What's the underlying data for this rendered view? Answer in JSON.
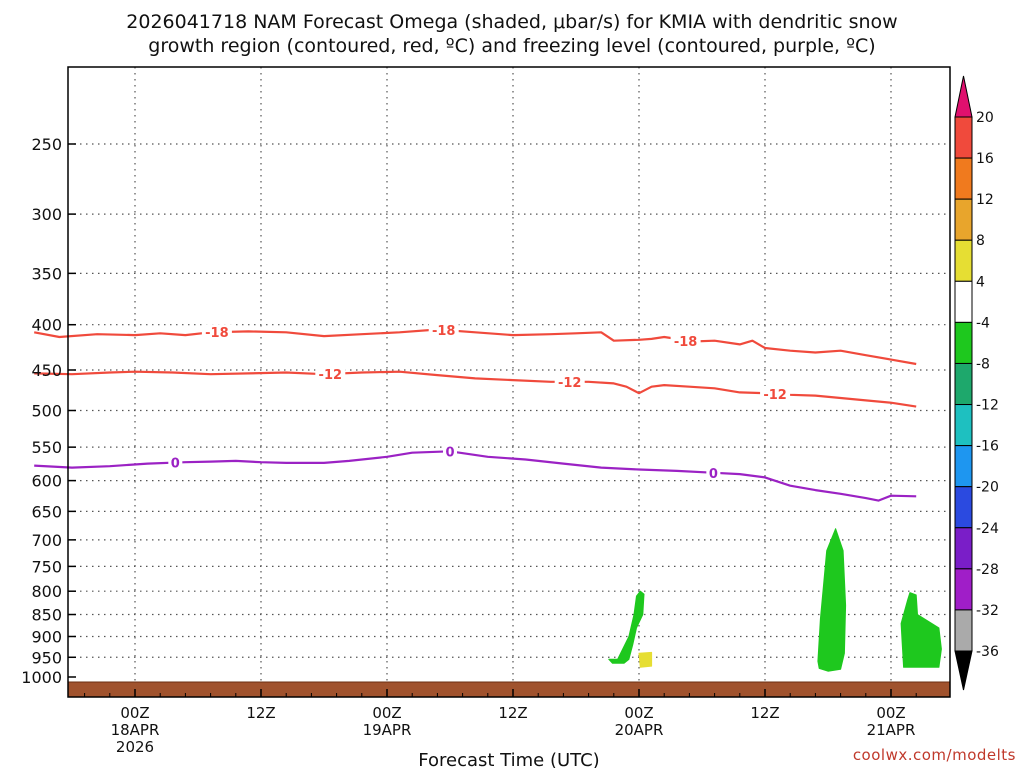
{
  "title": {
    "line1": "2026041718 NAM Forecast Omega (shaded, μbar/s) for KMIA with dendritic snow",
    "line2": "growth region (contoured, red, ºC) and freezing level (contoured, purple, ºC)"
  },
  "credit": "coolwx.com/modelts",
  "chart_data": {
    "type": "time-height",
    "xlabel": "Forecast Time (UTC)",
    "x_range_hours": [
      -8,
      62
    ],
    "x_ticks": [
      {
        "h": 0,
        "label": "00Z",
        "sub1": "18APR",
        "sub2": "2026"
      },
      {
        "h": 10,
        "label": "12Z",
        "sub1": "",
        "sub2": ""
      },
      {
        "h": 20,
        "label": "00Z",
        "sub1": "19APR",
        "sub2": ""
      },
      {
        "h": 30,
        "label": "12Z",
        "sub1": "",
        "sub2": ""
      },
      {
        "h": 40,
        "label": "00Z",
        "sub1": "20APR",
        "sub2": ""
      },
      {
        "h": 50,
        "label": "12Z",
        "sub1": "",
        "sub2": ""
      },
      {
        "h": 60,
        "label": "00Z",
        "sub1": "21APR",
        "sub2": ""
      }
    ],
    "y_scale": "log-pressure",
    "y_range_hpa": [
      200,
      1025
    ],
    "y_ticks": [
      250,
      300,
      350,
      400,
      450,
      500,
      550,
      600,
      650,
      700,
      750,
      800,
      850,
      900,
      950,
      1000
    ],
    "y_grid": [
      250,
      300,
      350,
      400,
      450,
      500,
      550,
      600,
      650,
      700,
      750,
      800,
      850,
      900,
      950
    ],
    "contours": [
      {
        "level": "-18",
        "color": "#f04a3c",
        "label_positions_h": [
          6.5,
          24.5,
          43.7
        ],
        "points": [
          [
            -8,
            408
          ],
          [
            -6,
            413
          ],
          [
            -3,
            410
          ],
          [
            0,
            411
          ],
          [
            2,
            409
          ],
          [
            4,
            411
          ],
          [
            6,
            408
          ],
          [
            9,
            407
          ],
          [
            12,
            408
          ],
          [
            15,
            412
          ],
          [
            18,
            410
          ],
          [
            21,
            408
          ],
          [
            24,
            405
          ],
          [
            27,
            408
          ],
          [
            30,
            411
          ],
          [
            33,
            410
          ],
          [
            35,
            409
          ],
          [
            37,
            408
          ],
          [
            38,
            417
          ],
          [
            40,
            416
          ],
          [
            41,
            415
          ],
          [
            42,
            413
          ],
          [
            43,
            415
          ],
          [
            44,
            418
          ],
          [
            46,
            417
          ],
          [
            48,
            421
          ],
          [
            49,
            417
          ],
          [
            50,
            425
          ],
          [
            52,
            428
          ],
          [
            54,
            430
          ],
          [
            56,
            428
          ],
          [
            58,
            433
          ],
          [
            60,
            438
          ],
          [
            62,
            443
          ]
        ]
      },
      {
        "level": "-12",
        "color": "#f04a3c",
        "label_positions_h": [
          15.5,
          34.5,
          50.8
        ],
        "points": [
          [
            -8,
            454
          ],
          [
            -5,
            455
          ],
          [
            -2,
            453
          ],
          [
            0,
            452
          ],
          [
            3,
            453
          ],
          [
            6,
            455
          ],
          [
            9,
            454
          ],
          [
            12,
            453
          ],
          [
            15,
            455
          ],
          [
            18,
            453
          ],
          [
            21,
            452
          ],
          [
            24,
            456
          ],
          [
            27,
            460
          ],
          [
            30,
            462
          ],
          [
            33,
            464
          ],
          [
            36,
            464
          ],
          [
            38,
            466
          ],
          [
            39,
            470
          ],
          [
            40,
            478
          ],
          [
            41,
            470
          ],
          [
            42,
            468
          ],
          [
            44,
            470
          ],
          [
            46,
            472
          ],
          [
            48,
            477
          ],
          [
            50,
            478
          ],
          [
            52,
            480
          ],
          [
            54,
            481
          ],
          [
            56,
            484
          ],
          [
            58,
            487
          ],
          [
            60,
            490
          ],
          [
            62,
            495
          ]
        ]
      },
      {
        "level": "0",
        "color": "#9b22c4",
        "label_positions_h": [
          3.2,
          25.0,
          45.9
        ],
        "points": [
          [
            -8,
            577
          ],
          [
            -5,
            580
          ],
          [
            -2,
            578
          ],
          [
            1,
            574
          ],
          [
            4,
            572
          ],
          [
            6,
            571
          ],
          [
            8,
            570
          ],
          [
            10,
            572
          ],
          [
            12,
            573
          ],
          [
            15,
            573
          ],
          [
            17,
            570
          ],
          [
            20,
            564
          ],
          [
            22,
            558
          ],
          [
            25,
            556
          ],
          [
            28,
            564
          ],
          [
            31,
            568
          ],
          [
            34,
            574
          ],
          [
            37,
            580
          ],
          [
            40,
            583
          ],
          [
            43,
            585
          ],
          [
            46,
            588
          ],
          [
            48,
            590
          ],
          [
            50,
            595
          ],
          [
            52,
            608
          ],
          [
            54,
            615
          ],
          [
            56,
            621
          ],
          [
            58,
            628
          ],
          [
            59,
            632
          ],
          [
            60,
            624
          ],
          [
            62,
            625
          ]
        ]
      }
    ],
    "shaded_regions": [
      {
        "omega_bin": "-4 to -8",
        "color": "#1ec81e",
        "description": "upward motion near 20APR 00Z",
        "points_h_p": [
          [
            38.3,
            955
          ],
          [
            39.2,
            900
          ],
          [
            39.6,
            850
          ],
          [
            39.8,
            810
          ],
          [
            40.1,
            800
          ],
          [
            40.4,
            806
          ],
          [
            40.3,
            850
          ],
          [
            39.8,
            880
          ],
          [
            39.5,
            920
          ],
          [
            39.2,
            955
          ],
          [
            38.8,
            965
          ],
          [
            37.9,
            965
          ],
          [
            37.6,
            955
          ]
        ]
      },
      {
        "omega_bin": "4 to 8",
        "color": "#e6de33",
        "description": "small downward pocket",
        "points_h_p": [
          [
            40.0,
            940
          ],
          [
            41.0,
            938
          ],
          [
            41.0,
            972
          ],
          [
            40.1,
            975
          ]
        ]
      },
      {
        "omega_bin": "-4 to -8",
        "color": "#1ec81e",
        "description": "deep upward column before 21APR 00Z",
        "points_h_p": [
          [
            54.2,
            960
          ],
          [
            54.4,
            860
          ],
          [
            54.9,
            720
          ],
          [
            55.6,
            680
          ],
          [
            56.2,
            720
          ],
          [
            56.4,
            830
          ],
          [
            56.3,
            940
          ],
          [
            56.0,
            980
          ],
          [
            55.0,
            985
          ],
          [
            54.3,
            978
          ]
        ]
      },
      {
        "omega_bin": "-4 to -8",
        "color": "#1ec81e",
        "description": "upward region after 21APR 00Z",
        "points_h_p": [
          [
            60.8,
            870
          ],
          [
            61.3,
            820
          ],
          [
            61.5,
            803
          ],
          [
            62,
            808
          ],
          [
            62.1,
            850
          ],
          [
            63.8,
            880
          ],
          [
            64.0,
            930
          ],
          [
            63.8,
            975
          ],
          [
            61.0,
            975
          ],
          [
            60.9,
            920
          ]
        ]
      }
    ],
    "terrain": {
      "color": "#a0522d",
      "top_hpa": 1013
    },
    "colorbar": {
      "labels": [
        "20",
        "16",
        "12",
        "8",
        "4",
        "-4",
        "-8",
        "-12",
        "-16",
        "-20",
        "-24",
        "-28",
        "-32",
        "-36"
      ],
      "colors": [
        "#f04a3c",
        "#f07a1e",
        "#e8a52c",
        "#e6de33",
        "#ffffff",
        "#1ec81e",
        "#1ea86c",
        "#1ec0c0",
        "#1e96f0",
        "#2b4ae0",
        "#7a1ec8",
        "#a01ec8",
        "#aaaaaa"
      ],
      "top_arrow_color": "#e0106e",
      "bottom_arrow_color": "#000000"
    }
  }
}
